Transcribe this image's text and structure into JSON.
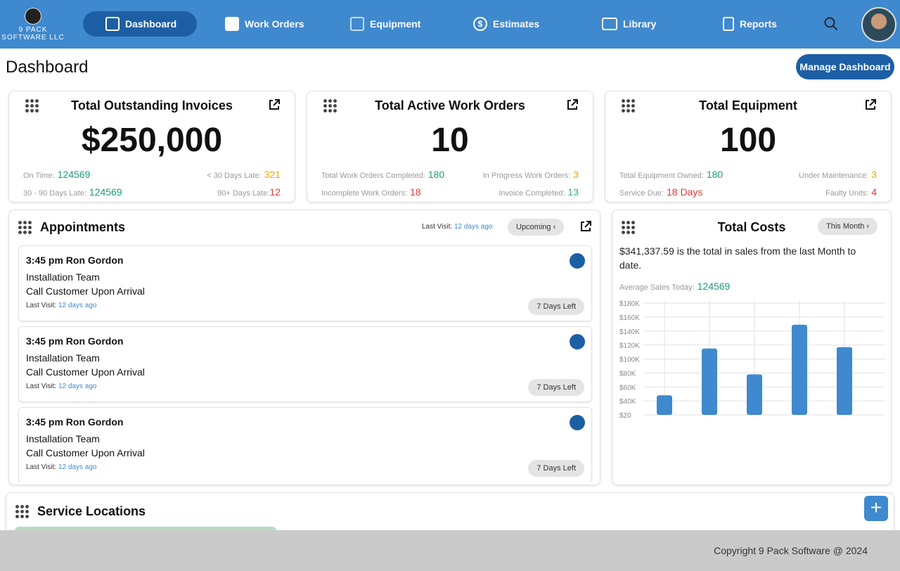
{
  "brand": {
    "line1": "9 PACK",
    "line2": "SOFTWARE LLC"
  },
  "nav": [
    {
      "label": "Dashboard",
      "icon": "dashboard-icon",
      "active": true
    },
    {
      "label": "Work Orders",
      "icon": "folder-icon"
    },
    {
      "label": "Equipment",
      "icon": "drill-icon"
    },
    {
      "label": "Estimates",
      "icon": "dollar-icon"
    },
    {
      "label": "Library",
      "icon": "book-icon"
    },
    {
      "label": "Reports",
      "icon": "clipboard-icon"
    }
  ],
  "page_title": "Dashboard",
  "manage_label": "Manage Dashboard",
  "cards": {
    "invoices": {
      "title": "Total Outstanding Invoices",
      "value": "$250,000",
      "s1l": "On Time:",
      "s1v": "124569",
      "s2l": "< 30 Days Late:",
      "s2v": "321",
      "s3l": "30 - 90 Days Late:",
      "s3v": "124569",
      "s4l": "90+ Days Late:",
      "s4v": "12"
    },
    "work": {
      "title": "Total Active Work Orders",
      "value": "10",
      "s1l": "Total Work Orders Completed:",
      "s1v": "180",
      "s2l": "In Progress Work Orders:",
      "s2v": "3",
      "s3l": "Incomplete Work Orders:",
      "s3v": "18",
      "s4l": "Invoice Completed:",
      "s4v": "13"
    },
    "equip": {
      "title": "Total Equipment",
      "value": "100",
      "s1l": "Total Equipment Owned:",
      "s1v": "180",
      "s2l": "Under Maintenance:",
      "s2v": "3",
      "s3l": "Service Due:",
      "s3v": "18 Days",
      "s4l": "Faulty Units:",
      "s4v": "4"
    }
  },
  "appointments": {
    "title": "Appointments",
    "last_visit_label": "Last Visit:",
    "last_visit_value": "12 days ago",
    "filter": "Upcoming",
    "items": [
      {
        "title": "3:45 pm Ron Gordon",
        "team": "Installation Team",
        "note": "Call Customer Upon Arrival",
        "lv_label": "Last Visit:",
        "lv_value": "12 days ago",
        "badge": "7 Days Left"
      },
      {
        "title": "3:45 pm Ron Gordon",
        "team": "Installation Team",
        "note": "Call Customer Upon Arrival",
        "lv_label": "Last Visit:",
        "lv_value": "12 days ago",
        "badge": "7 Days Left"
      },
      {
        "title": "3:45 pm Ron Gordon",
        "team": "Installation Team",
        "note": "Call Customer Upon Arrival",
        "lv_label": "Last Visit:",
        "lv_value": "12 days ago",
        "badge": "7 Days Left"
      }
    ]
  },
  "costs": {
    "title": "Total Costs",
    "filter": "This Month",
    "summary": "$341,337.59 is the total in sales from the last Month to date.",
    "avg_label": "Average Sales Today:",
    "avg_value": "124569"
  },
  "chart_data": {
    "type": "bar",
    "ylim": [
      20,
      180
    ],
    "yticks": [
      "$180K",
      "$160K",
      "$140K",
      "$120K",
      "$100K",
      "$80K",
      "$60K",
      "$40K",
      "$20"
    ],
    "ytick_values": [
      180,
      160,
      140,
      120,
      100,
      80,
      60,
      40,
      20
    ],
    "values": [
      48,
      115,
      78,
      149,
      117
    ],
    "color": "#3f89cf",
    "grid": true
  },
  "service": {
    "title": "Service Locations"
  },
  "footer": "Copyright 9 Pack Software @ 2024",
  "colors": {
    "nav": "#3f89cf",
    "accent": "#1c5fa5",
    "green": "#1c9c7c",
    "orange": "#f5a300",
    "red": "#e53935"
  }
}
